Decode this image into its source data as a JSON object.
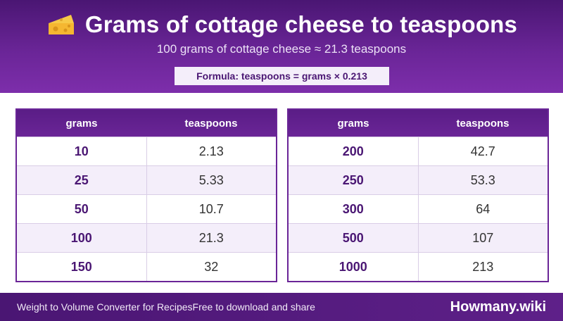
{
  "header": {
    "title": "Grams of cottage cheese to teaspoons",
    "subtitle": "100 grams of cottage cheese ≈ 21.3 teaspoons",
    "formula": "Formula: teaspoons = grams × 0.213",
    "icon": "cheese-icon"
  },
  "tables": [
    {
      "headers": [
        "grams",
        "teaspoons"
      ],
      "rows": [
        {
          "grams": "10",
          "teaspoons": "2.13"
        },
        {
          "grams": "25",
          "teaspoons": "5.33"
        },
        {
          "grams": "50",
          "teaspoons": "10.7"
        },
        {
          "grams": "100",
          "teaspoons": "21.3"
        },
        {
          "grams": "150",
          "teaspoons": "32"
        }
      ]
    },
    {
      "headers": [
        "grams",
        "teaspoons"
      ],
      "rows": [
        {
          "grams": "200",
          "teaspoons": "42.7"
        },
        {
          "grams": "250",
          "teaspoons": "53.3"
        },
        {
          "grams": "300",
          "teaspoons": "64"
        },
        {
          "grams": "500",
          "teaspoons": "107"
        },
        {
          "grams": "1000",
          "teaspoons": "213"
        }
      ]
    }
  ],
  "footer": {
    "left": "Weight to Volume Converter for Recipes",
    "left2": "Free to download and share",
    "brand": "Howmany.wiki"
  },
  "colors": {
    "header_bg": "#6a2597",
    "accent": "#4a1673",
    "alt_row": "#f4eefa"
  }
}
